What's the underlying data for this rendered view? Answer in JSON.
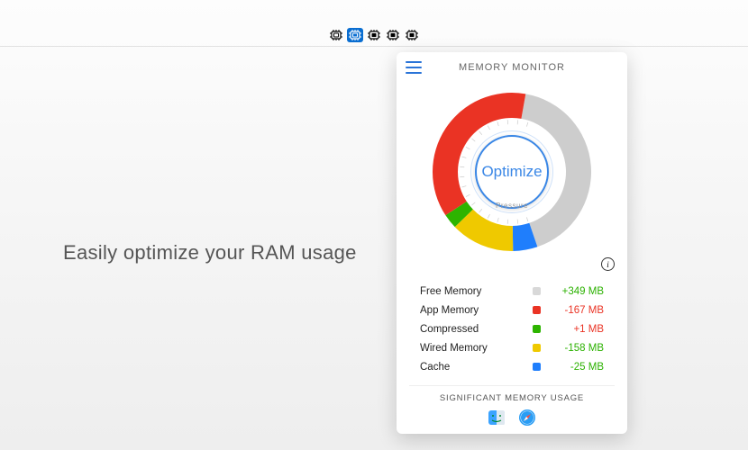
{
  "headline": "Easily optimize your RAM usage",
  "menubar": {
    "selected_index": 1,
    "icons": [
      "chip-empty",
      "chip-empty",
      "chip-filled",
      "chip-filled",
      "chip-filled"
    ]
  },
  "panel": {
    "title": "MEMORY MONITOR",
    "optimize_label": "Optimize",
    "pressure_label": "Pressure",
    "footer_title": "SIGNIFICANT MEMORY USAGE",
    "footer_apps": [
      "finder",
      "safari"
    ]
  },
  "donut": {
    "type": "pie",
    "size": 190,
    "outer_radius": 88,
    "inner_radius": 60,
    "background_color": "#ffffff",
    "slices": [
      {
        "label": "Free Memory",
        "value": 42,
        "color": "#cdcdcd"
      },
      {
        "label": "Cache",
        "value": 5,
        "color": "#1f7efc"
      },
      {
        "label": "Wired Memory",
        "value": 13,
        "color": "#efc900"
      },
      {
        "label": "Compressed",
        "value": 3,
        "color": "#2db400"
      },
      {
        "label": "App Memory",
        "value": 37,
        "color": "#ea3324"
      }
    ],
    "start_angle_deg": -80
  },
  "stats": [
    {
      "label": "Free Memory",
      "swatch": "#d8d8d8",
      "value": "+349 MB",
      "value_color": "#2bb100"
    },
    {
      "label": "App Memory",
      "swatch": "#ea3324",
      "value": "-167 MB",
      "value_color": "#ea3324"
    },
    {
      "label": "Compressed",
      "swatch": "#2db400",
      "value": "+1 MB",
      "value_color": "#ea3324"
    },
    {
      "label": "Wired Memory",
      "swatch": "#efc900",
      "value": "-158 MB",
      "value_color": "#2bb100"
    },
    {
      "label": "Cache",
      "swatch": "#1f7efc",
      "value": "-25 MB",
      "value_color": "#2bb100"
    }
  ],
  "colors": {
    "accent": "#3a87e6",
    "menubar_selected": "#0a6ed1"
  }
}
